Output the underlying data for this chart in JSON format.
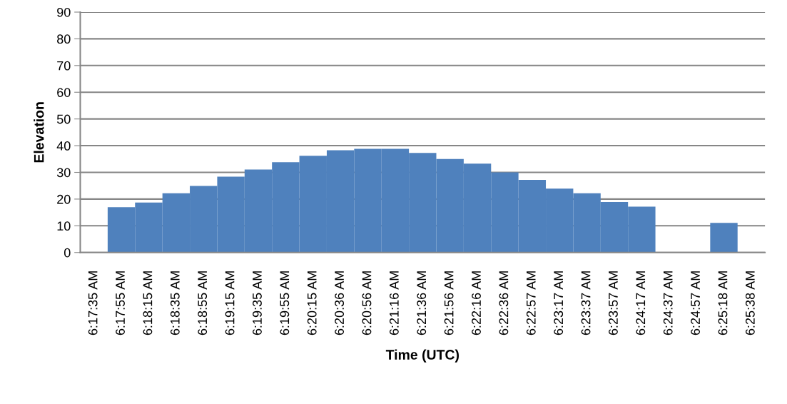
{
  "chart_data": {
    "type": "bar",
    "xlabel": "Time (UTC)",
    "ylabel": "Elevation",
    "categories": [
      "6:17:35 AM",
      "6:17:55 AM",
      "6:18:15 AM",
      "6:18:35 AM",
      "6:18:55 AM",
      "6:19:15 AM",
      "6:19:35 AM",
      "6:19:55 AM",
      "6:20:15 AM",
      "6:20:36 AM",
      "6:20:56 AM",
      "6:21:16 AM",
      "6:21:36 AM",
      "6:21:56 AM",
      "6:22:16 AM",
      "6:22:36 AM",
      "6:22:57 AM",
      "6:23:17 AM",
      "6:23:37 AM",
      "6:23:57 AM",
      "6:24:17 AM",
      "6:24:37 AM",
      "6:24:57 AM",
      "6:25:18 AM",
      "6:25:38 AM"
    ],
    "values": [
      null,
      17,
      18.7,
      22.2,
      24.9,
      28.4,
      31.1,
      33.8,
      36.2,
      38.3,
      38.8,
      38.8,
      37.3,
      35,
      33.3,
      30,
      27.2,
      23.9,
      22.2,
      18.9,
      17.2,
      null,
      null,
      11.1,
      null
    ],
    "color": "#4f81bd",
    "ylim": [
      0,
      90
    ],
    "yticks": [
      0,
      10,
      20,
      30,
      40,
      50,
      60,
      70,
      80,
      90
    ],
    "grid": "y"
  }
}
